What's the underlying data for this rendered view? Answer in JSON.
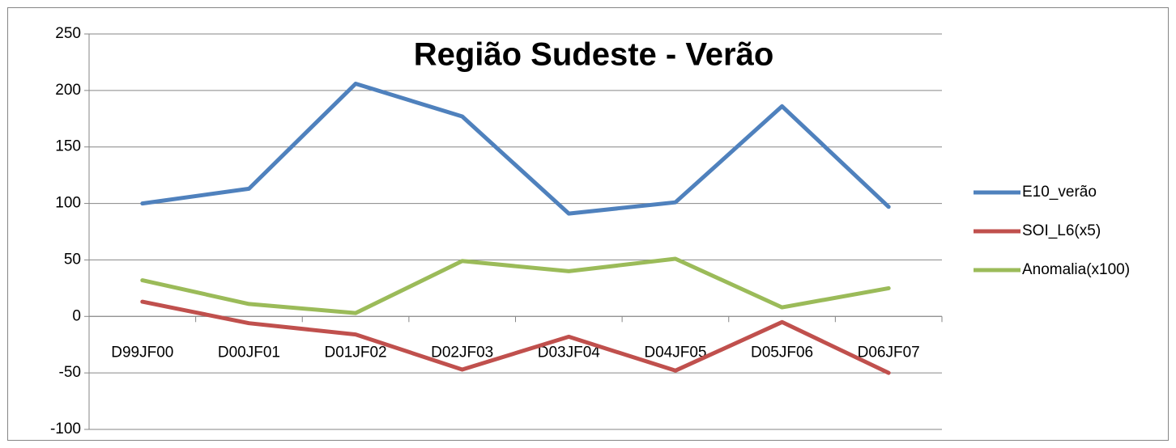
{
  "chart_data": {
    "type": "line",
    "title": "Região Sudeste - Verão",
    "categories": [
      "D99JF00",
      "D00JF01",
      "D01JF02",
      "D02JF03",
      "D03JF04",
      "D04JF05",
      "D05JF06",
      "D06JF07"
    ],
    "series": [
      {
        "name": "E10_verão",
        "color": "#4f81bd",
        "values": [
          100,
          113,
          206,
          177,
          91,
          101,
          186,
          97
        ]
      },
      {
        "name": "SOI_L6(x5)",
        "color": "#c0504d",
        "values": [
          13,
          -6,
          -16,
          -47,
          -18,
          -48,
          -5,
          -50
        ]
      },
      {
        "name": "Anomalia(x100)",
        "color": "#9bbb59",
        "values": [
          32,
          11,
          3,
          49,
          40,
          51,
          8,
          25
        ]
      }
    ],
    "ylim": [
      -100,
      250
    ],
    "yticks": [
      -100,
      -50,
      0,
      50,
      100,
      150,
      200,
      250
    ],
    "grid": true,
    "legend": "right"
  }
}
